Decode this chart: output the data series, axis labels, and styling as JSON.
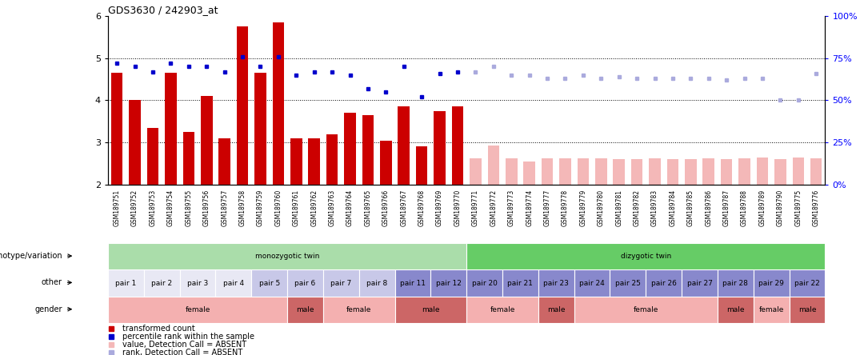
{
  "title": "GDS3630 / 242903_at",
  "samples": [
    "GSM189751",
    "GSM189752",
    "GSM189753",
    "GSM189754",
    "GSM189755",
    "GSM189756",
    "GSM189757",
    "GSM189758",
    "GSM189759",
    "GSM189760",
    "GSM189761",
    "GSM189762",
    "GSM189763",
    "GSM189764",
    "GSM189765",
    "GSM189766",
    "GSM189767",
    "GSM189768",
    "GSM189769",
    "GSM189770",
    "GSM189771",
    "GSM189772",
    "GSM189773",
    "GSM189774",
    "GSM189777",
    "GSM189778",
    "GSM189779",
    "GSM189780",
    "GSM189781",
    "GSM189782",
    "GSM189783",
    "GSM189784",
    "GSM189785",
    "GSM189786",
    "GSM189787",
    "GSM189788",
    "GSM189789",
    "GSM189790",
    "GSM189775",
    "GSM189776"
  ],
  "bar_values": [
    4.65,
    4.0,
    3.35,
    4.65,
    3.25,
    4.1,
    3.1,
    5.75,
    4.65,
    5.85,
    3.1,
    3.1,
    3.2,
    3.7,
    3.65,
    3.05,
    3.85,
    2.9,
    3.75,
    3.85,
    2.62,
    2.92,
    2.62,
    2.55,
    2.62,
    2.62,
    2.62,
    2.62,
    2.6,
    2.6,
    2.62,
    2.6,
    2.6,
    2.62,
    2.6,
    2.62,
    2.65,
    2.6,
    2.65,
    2.62
  ],
  "bar_absent": [
    false,
    false,
    false,
    false,
    false,
    false,
    false,
    false,
    false,
    false,
    false,
    false,
    false,
    false,
    false,
    false,
    false,
    false,
    false,
    false,
    true,
    true,
    true,
    true,
    true,
    true,
    true,
    true,
    true,
    true,
    true,
    true,
    true,
    true,
    true,
    true,
    true,
    true,
    true,
    true
  ],
  "rank_values": [
    72,
    70,
    67,
    72,
    70,
    70,
    67,
    76,
    70,
    76,
    65,
    67,
    67,
    65,
    57,
    55,
    70,
    52,
    66,
    67,
    67,
    70,
    65,
    65,
    63,
    63,
    65,
    63,
    64,
    63,
    63,
    63,
    63,
    63,
    62,
    63,
    63,
    50,
    50,
    66
  ],
  "rank_absent": [
    false,
    false,
    false,
    false,
    false,
    false,
    false,
    false,
    false,
    false,
    false,
    false,
    false,
    false,
    false,
    false,
    false,
    false,
    false,
    false,
    true,
    true,
    true,
    true,
    true,
    true,
    true,
    true,
    true,
    true,
    true,
    true,
    true,
    true,
    true,
    true,
    true,
    true,
    true,
    true
  ],
  "ylim": [
    2.0,
    6.0
  ],
  "yticks": [
    2,
    3,
    4,
    5,
    6
  ],
  "rank_yticks_right": [
    0,
    25,
    50,
    75,
    100
  ],
  "bar_color": "#cc0000",
  "bar_absent_color": "#f4b8b8",
  "rank_color": "#0000cc",
  "rank_absent_color": "#aaaadd",
  "geno_groups": [
    {
      "label": "monozygotic twin",
      "start": 0,
      "end": 19,
      "color": "#aaddaa"
    },
    {
      "label": "dizygotic twin",
      "start": 20,
      "end": 39,
      "color": "#66cc66"
    }
  ],
  "pair_groups": [
    {
      "label": "pair 1",
      "start": 0,
      "end": 1,
      "color": "#e8e8f4"
    },
    {
      "label": "pair 2",
      "start": 2,
      "end": 3,
      "color": "#e8e8f4"
    },
    {
      "label": "pair 3",
      "start": 4,
      "end": 5,
      "color": "#e8e8f4"
    },
    {
      "label": "pair 4",
      "start": 6,
      "end": 7,
      "color": "#e8e8f4"
    },
    {
      "label": "pair 5",
      "start": 8,
      "end": 9,
      "color": "#c8c8e8"
    },
    {
      "label": "pair 6",
      "start": 10,
      "end": 11,
      "color": "#c8c8e8"
    },
    {
      "label": "pair 7",
      "start": 12,
      "end": 13,
      "color": "#c8c8e8"
    },
    {
      "label": "pair 8",
      "start": 14,
      "end": 15,
      "color": "#c8c8e8"
    },
    {
      "label": "pair 11",
      "start": 16,
      "end": 17,
      "color": "#8888cc"
    },
    {
      "label": "pair 12",
      "start": 18,
      "end": 19,
      "color": "#8888cc"
    },
    {
      "label": "pair 20",
      "start": 20,
      "end": 21,
      "color": "#8888cc"
    },
    {
      "label": "pair 21",
      "start": 22,
      "end": 23,
      "color": "#8888cc"
    },
    {
      "label": "pair 23",
      "start": 24,
      "end": 25,
      "color": "#8888cc"
    },
    {
      "label": "pair 24",
      "start": 26,
      "end": 27,
      "color": "#8888cc"
    },
    {
      "label": "pair 25",
      "start": 28,
      "end": 29,
      "color": "#8888cc"
    },
    {
      "label": "pair 26",
      "start": 30,
      "end": 31,
      "color": "#8888cc"
    },
    {
      "label": "pair 27",
      "start": 32,
      "end": 33,
      "color": "#8888cc"
    },
    {
      "label": "pair 28",
      "start": 34,
      "end": 35,
      "color": "#8888cc"
    },
    {
      "label": "pair 29",
      "start": 36,
      "end": 37,
      "color": "#8888cc"
    },
    {
      "label": "pair 22",
      "start": 38,
      "end": 39,
      "color": "#8888cc"
    }
  ],
  "gender_groups": [
    {
      "label": "female",
      "start": 0,
      "end": 9,
      "color": "#f4b0b0"
    },
    {
      "label": "male",
      "start": 10,
      "end": 11,
      "color": "#cc6666"
    },
    {
      "label": "female",
      "start": 12,
      "end": 15,
      "color": "#f4b0b0"
    },
    {
      "label": "male",
      "start": 16,
      "end": 19,
      "color": "#cc6666"
    },
    {
      "label": "female",
      "start": 20,
      "end": 23,
      "color": "#f4b0b0"
    },
    {
      "label": "male",
      "start": 24,
      "end": 25,
      "color": "#cc6666"
    },
    {
      "label": "female",
      "start": 26,
      "end": 33,
      "color": "#f4b0b0"
    },
    {
      "label": "male",
      "start": 34,
      "end": 35,
      "color": "#cc6666"
    },
    {
      "label": "female",
      "start": 36,
      "end": 37,
      "color": "#f4b0b0"
    },
    {
      "label": "male",
      "start": 38,
      "end": 39,
      "color": "#cc6666"
    }
  ]
}
